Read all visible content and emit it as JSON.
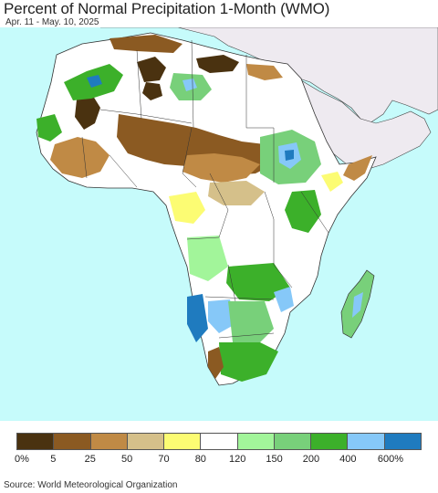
{
  "title": "Percent of Normal Precipitation 1-Month (WMO)",
  "subtitle": "Apr. 11 - May. 10, 2025",
  "source": "Source: World Meteorological Organization",
  "legend": {
    "colors": [
      "#4a3210",
      "#8b5a22",
      "#c08a45",
      "#d5c08a",
      "#fcfc73",
      "#ffffff",
      "#a2f59a",
      "#78d07a",
      "#3cb02a",
      "#86c8f8",
      "#1f7bbf"
    ],
    "ticks": [
      "0%",
      "5",
      "25",
      "50",
      "70",
      "80",
      "120",
      "150",
      "200",
      "400",
      "600%"
    ]
  },
  "map": {
    "ocean_color": "#c6fbfb",
    "land_nodata_color": "#ffffff",
    "outside_land_color": "#eeeaf0"
  }
}
